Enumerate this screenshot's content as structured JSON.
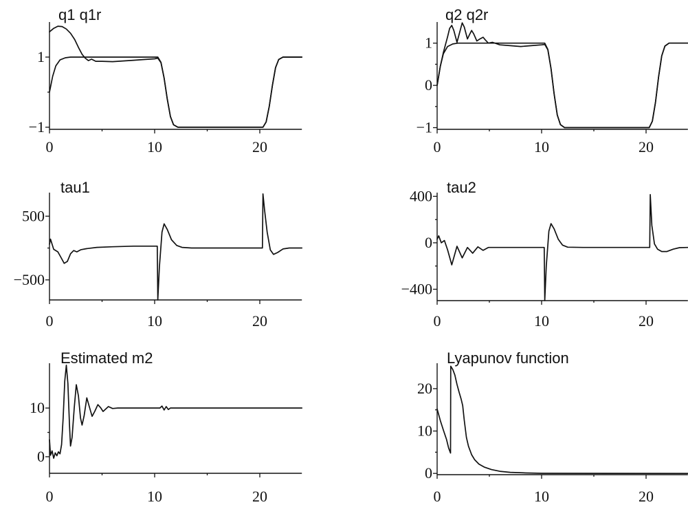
{
  "colors": {
    "line": "#111111",
    "background": "#ffffff"
  },
  "chart_data": [
    {
      "type": "line",
      "title": "q1 q1r",
      "xlim": [
        0,
        24
      ],
      "ylim": [
        -1.06,
        2
      ],
      "xticks": [
        0,
        10,
        20
      ],
      "xtick_labels": [
        "0",
        "10",
        "20"
      ],
      "yticks": [
        -1,
        1
      ],
      "ytick_labels": [
        "−1",
        "1"
      ],
      "grid": false,
      "series": [
        {
          "x": [
            0,
            0.3,
            0.6,
            1,
            1.5,
            2,
            10.3,
            10.6,
            10.9,
            11.2,
            11.5,
            11.8,
            12.2,
            20.3,
            20.6,
            20.9,
            21.2,
            21.5,
            21.8,
            22.2,
            24
          ],
          "y": [
            0,
            0.45,
            0.75,
            0.92,
            0.98,
            1,
            1,
            0.85,
            0.4,
            -0.2,
            -0.7,
            -0.93,
            -1,
            -1,
            -0.85,
            -0.4,
            0.2,
            0.7,
            0.93,
            1,
            1
          ]
        },
        {
          "x": [
            0,
            0.4,
            0.8,
            1.2,
            1.6,
            2,
            2.4,
            2.8,
            3.1,
            3.4,
            3.7,
            4,
            4.4,
            5,
            6,
            7,
            8,
            9,
            10,
            10.3,
            10.6,
            10.9,
            11.2,
            11.5,
            11.8,
            12.2,
            20.3,
            20.6,
            20.9,
            21.2,
            21.5,
            21.8,
            22.2,
            24
          ],
          "y": [
            1.72,
            1.82,
            1.88,
            1.87,
            1.8,
            1.68,
            1.5,
            1.25,
            1.08,
            0.97,
            0.9,
            0.94,
            0.88,
            0.88,
            0.87,
            0.89,
            0.91,
            0.93,
            0.95,
            0.97,
            0.84,
            0.4,
            -0.2,
            -0.7,
            -0.93,
            -1,
            -1,
            -0.85,
            -0.4,
            0.2,
            0.7,
            0.93,
            1,
            1
          ]
        }
      ]
    },
    {
      "type": "line",
      "title": "q2 q2r",
      "xlim": [
        0,
        24
      ],
      "ylim": [
        -1.04,
        1.5
      ],
      "xticks": [
        0,
        10,
        20
      ],
      "xtick_labels": [
        "0",
        "10",
        "20"
      ],
      "yticks": [
        -1,
        0,
        1
      ],
      "ytick_labels": [
        "−1",
        "0",
        "1"
      ],
      "grid": false,
      "series": [
        {
          "x": [
            0,
            0.3,
            0.6,
            1,
            1.5,
            2,
            10.3,
            10.6,
            10.9,
            11.2,
            11.5,
            11.8,
            12.2,
            20.3,
            20.6,
            20.9,
            21.2,
            21.5,
            21.8,
            22.2,
            24
          ],
          "y": [
            0,
            0.45,
            0.75,
            0.92,
            0.98,
            1,
            1,
            0.85,
            0.4,
            -0.2,
            -0.7,
            -0.93,
            -1,
            -1,
            -0.85,
            -0.4,
            0.2,
            0.7,
            0.93,
            1,
            1
          ]
        },
        {
          "x": [
            0,
            0.3,
            0.6,
            1,
            1.2,
            1.4,
            1.6,
            1.9,
            2.1,
            2.4,
            2.6,
            2.9,
            3.1,
            3.3,
            3.5,
            3.8,
            4.1,
            4.4,
            4.6,
            4.9,
            5.3,
            6,
            7,
            8,
            9,
            10,
            10.3,
            10.6,
            10.9,
            11.2,
            11.5,
            11.8,
            12.2,
            20.3,
            20.6,
            20.9,
            21.2,
            21.5,
            21.8,
            22.2,
            24
          ],
          "y": [
            0,
            0.45,
            0.78,
            1.15,
            1.35,
            1.42,
            1.3,
            1.02,
            1.2,
            1.48,
            1.38,
            1.1,
            1.2,
            1.3,
            1.22,
            1.05,
            1.1,
            1.14,
            1.08,
            1.0,
            1.02,
            0.96,
            0.94,
            0.92,
            0.94,
            0.96,
            0.97,
            0.84,
            0.4,
            -0.2,
            -0.7,
            -0.93,
            -1,
            -1,
            -0.85,
            -0.4,
            0.2,
            0.7,
            0.93,
            1,
            1
          ]
        }
      ]
    },
    {
      "type": "line",
      "title": "tau1",
      "xlim": [
        0,
        24
      ],
      "ylim": [
        -815,
        870
      ],
      "xticks": [
        0,
        10,
        20
      ],
      "xtick_labels": [
        "0",
        "10",
        "20"
      ],
      "yticks": [
        -500,
        500
      ],
      "ytick_labels": [
        "−500",
        "500"
      ],
      "grid": false,
      "series": [
        {
          "x": [
            0,
            0.1,
            0.4,
            0.8,
            1.1,
            1.4,
            1.7,
            2.0,
            2.3,
            2.6,
            3.0,
            3.5,
            4.5,
            6,
            8,
            10.25,
            10.3,
            10.45,
            10.7,
            10.9,
            11.2,
            11.6,
            12.1,
            12.6,
            13.5,
            16,
            18,
            20.25,
            20.3,
            20.45,
            20.7,
            21.0,
            21.3,
            21.7,
            22.2,
            22.8,
            24
          ],
          "y": [
            60,
            140,
            -20,
            -60,
            -150,
            -240,
            -210,
            -90,
            -40,
            -60,
            -25,
            -10,
            10,
            20,
            30,
            30,
            -815,
            -300,
            250,
            380,
            290,
            130,
            40,
            10,
            0,
            0,
            0,
            0,
            850,
            600,
            250,
            -30,
            -100,
            -70,
            -15,
            0,
            0
          ]
        }
      ]
    },
    {
      "type": "line",
      "title": "tau2",
      "xlim": [
        0,
        24
      ],
      "ylim": [
        -498,
        432
      ],
      "xticks": [
        0,
        10,
        20
      ],
      "xtick_labels": [
        "0",
        "10",
        "20"
      ],
      "yticks": [
        -400,
        0,
        400
      ],
      "ytick_labels": [
        "−400",
        "0",
        "400"
      ],
      "grid": false,
      "series": [
        {
          "x": [
            0,
            0.15,
            0.4,
            0.7,
            1.0,
            1.4,
            1.9,
            2.4,
            2.9,
            3.4,
            3.9,
            4.4,
            4.9,
            6,
            8,
            10.25,
            10.3,
            10.45,
            10.7,
            10.9,
            11.2,
            11.6,
            12.0,
            12.5,
            14,
            17,
            20.35,
            20.4,
            20.55,
            20.8,
            21.1,
            21.5,
            22.0,
            22.6,
            23.2,
            24
          ],
          "y": [
            30,
            60,
            0,
            20,
            -60,
            -190,
            -30,
            -130,
            -40,
            -90,
            -35,
            -65,
            -40,
            -40,
            -40,
            -40,
            -498,
            -200,
            100,
            165,
            120,
            30,
            -20,
            -38,
            -40,
            -40,
            -40,
            415,
            150,
            -10,
            -55,
            -75,
            -75,
            -55,
            -42,
            -40
          ]
        }
      ]
    },
    {
      "type": "line",
      "title": "Estimated m2",
      "xlim": [
        0,
        24
      ],
      "ylim": [
        -3.4,
        19.2
      ],
      "xticks": [
        0,
        10,
        20
      ],
      "xtick_labels": [
        "0",
        "10",
        "20"
      ],
      "yticks": [
        0,
        10
      ],
      "ytick_labels": [
        "0",
        "10"
      ],
      "grid": false,
      "series": [
        {
          "x": [
            0,
            0.1,
            0.25,
            0.4,
            0.55,
            0.7,
            0.85,
            1.0,
            1.15,
            1.3,
            1.45,
            1.6,
            1.75,
            1.9,
            2.0,
            2.15,
            2.35,
            2.55,
            2.75,
            2.95,
            3.1,
            3.3,
            3.55,
            3.8,
            4.05,
            4.3,
            4.6,
            4.85,
            5.1,
            5.35,
            5.6,
            6.0,
            6.5,
            10.5,
            10.7,
            10.9,
            11.1,
            11.3,
            11.5,
            24
          ],
          "y": [
            3.5,
            0.3,
            1.2,
            -0.3,
            0.8,
            0.2,
            1.0,
            0.6,
            2.5,
            8,
            15.5,
            18.8,
            15,
            6.5,
            2.2,
            4,
            10,
            14.8,
            12.5,
            8,
            6.5,
            8.5,
            12.1,
            10.2,
            8.3,
            9.3,
            10.7,
            10.1,
            9.3,
            9.8,
            10.3,
            9.9,
            10,
            10,
            10.4,
            9.6,
            10.3,
            9.7,
            10,
            10
          ]
        }
      ]
    },
    {
      "type": "line",
      "title": "Lyapunov function",
      "xlim": [
        0,
        24
      ],
      "ylim": [
        -0.3,
        26
      ],
      "xticks": [
        0,
        10,
        20
      ],
      "xtick_labels": [
        "0",
        "10",
        "20"
      ],
      "yticks": [
        0,
        10,
        20
      ],
      "ytick_labels": [
        "0",
        "10",
        "20"
      ],
      "grid": false,
      "series": [
        {
          "x": [
            0,
            0.3,
            0.6,
            0.9,
            1.1,
            1.28,
            1.3,
            1.5,
            1.7,
            1.9,
            2.1,
            2.3,
            2.45,
            2.6,
            2.8,
            3.0,
            3.3,
            3.6,
            4.0,
            4.5,
            5.2,
            6,
            7,
            8.5,
            10,
            24
          ],
          "y": [
            15.2,
            12.5,
            10.2,
            8,
            6,
            4.8,
            25.3,
            24.5,
            23.2,
            21,
            19.2,
            17.5,
            16,
            12.5,
            8.5,
            6.4,
            4.4,
            3.2,
            2.2,
            1.5,
            0.9,
            0.5,
            0.25,
            0.1,
            0.02,
            0
          ]
        }
      ]
    }
  ]
}
